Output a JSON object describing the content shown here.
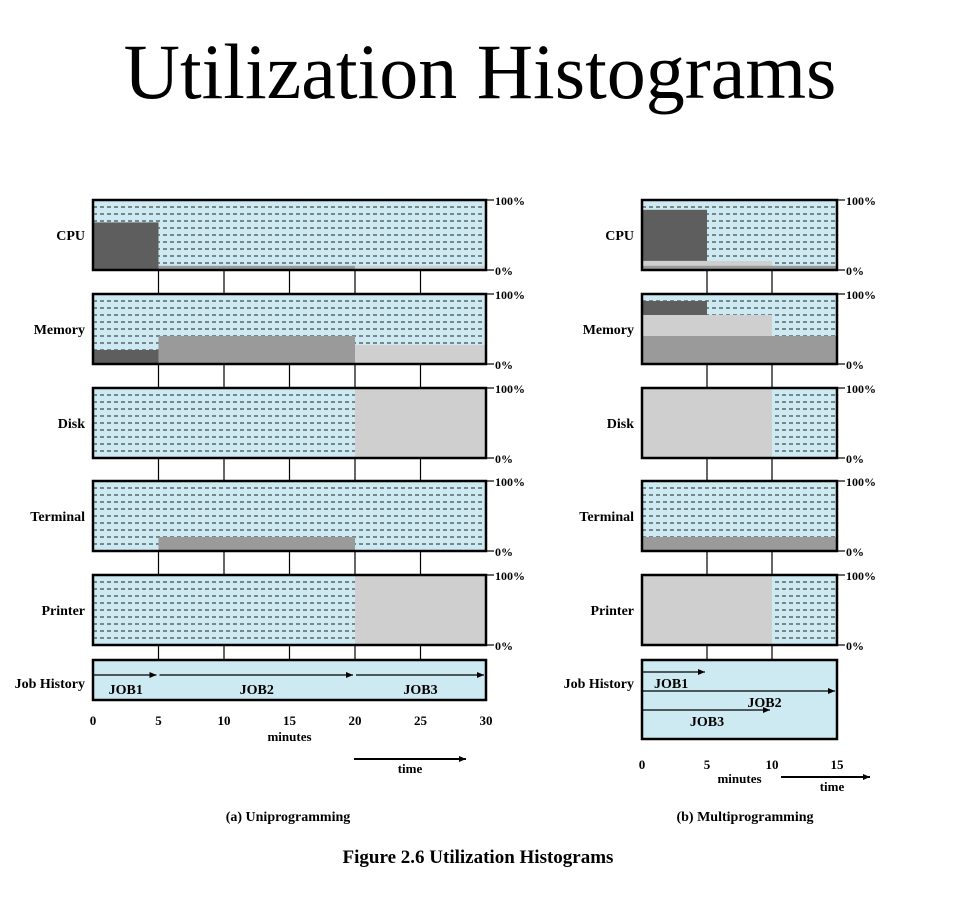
{
  "title": "Utilization Histograms",
  "figure_caption": "Figure 2.6  Utilization Histograms",
  "colors": {
    "idle_fill": "#cde9f2",
    "dash": "#222222",
    "job1": "#5e5e5e",
    "job2": "#9a9a9a",
    "job3": "#cfcfcf",
    "border": "#000000"
  },
  "resources": [
    "CPU",
    "Memory",
    "Disk",
    "Terminal",
    "Printer"
  ],
  "job_history_label": "Job History",
  "pct_top": "100%",
  "pct_bottom": "0%",
  "panels": [
    {
      "caption": "(a) Uniprogramming",
      "axis_label": "minutes",
      "time_label": "time",
      "x_max": 30,
      "ticks": [
        "0",
        "5",
        "10",
        "15",
        "20",
        "25",
        "30"
      ],
      "tick_values": [
        0,
        5,
        10,
        15,
        20,
        25,
        30
      ],
      "resource_segments": {
        "CPU": [
          {
            "job": "job1",
            "start": 0,
            "end": 5,
            "from": 0,
            "to": 0.68
          },
          {
            "job": "job2",
            "start": 5,
            "end": 20,
            "from": 0,
            "to": 0.06
          },
          {
            "job": "job3",
            "start": 20,
            "end": 30,
            "from": 0,
            "to": 0.06
          }
        ],
        "Memory": [
          {
            "job": "job1",
            "start": 0,
            "end": 5,
            "from": 0,
            "to": 0.2
          },
          {
            "job": "job2",
            "start": 5,
            "end": 20,
            "from": 0,
            "to": 0.4
          },
          {
            "job": "job3",
            "start": 20,
            "end": 30,
            "from": 0,
            "to": 0.27
          }
        ],
        "Disk": [
          {
            "job": "job3",
            "start": 20,
            "end": 30,
            "from": 0,
            "to": 1
          }
        ],
        "Terminal": [
          {
            "job": "job2",
            "start": 5,
            "end": 20,
            "from": 0,
            "to": 0.2
          }
        ],
        "Printer": [
          {
            "job": "job3",
            "start": 20,
            "end": 30,
            "from": 0,
            "to": 1
          }
        ]
      },
      "job_history": [
        {
          "label": "JOB1",
          "start": 0,
          "end": 5
        },
        {
          "label": "JOB2",
          "start": 5,
          "end": 20
        },
        {
          "label": "JOB3",
          "start": 20,
          "end": 30
        }
      ]
    },
    {
      "caption": "(b) Multiprogramming",
      "axis_label": "minutes",
      "time_label": "time",
      "x_max": 15,
      "ticks": [
        "0",
        "5",
        "10",
        "15"
      ],
      "tick_values": [
        0,
        5,
        10,
        15
      ],
      "resource_segments": {
        "CPU": [
          {
            "job": "job3",
            "start": 0,
            "end": 10,
            "from": 0,
            "to": 0.13
          },
          {
            "job": "job1",
            "start": 0,
            "end": 5,
            "from": 0.13,
            "to": 0.86
          },
          {
            "job": "job2",
            "start": 0,
            "end": 15,
            "from": 0,
            "to": 0.06
          }
        ],
        "Memory": [
          {
            "job": "job2",
            "start": 0,
            "end": 15,
            "from": 0,
            "to": 0.4
          },
          {
            "job": "job3",
            "start": 0,
            "end": 10,
            "from": 0.4,
            "to": 0.7
          },
          {
            "job": "job1",
            "start": 0,
            "end": 5,
            "from": 0.7,
            "to": 0.9
          }
        ],
        "Disk": [
          {
            "job": "job3",
            "start": 0,
            "end": 10,
            "from": 0,
            "to": 1
          }
        ],
        "Terminal": [
          {
            "job": "job2",
            "start": 0,
            "end": 15,
            "from": 0,
            "to": 0.2
          }
        ],
        "Printer": [
          {
            "job": "job3",
            "start": 0,
            "end": 10,
            "from": 0,
            "to": 1
          }
        ]
      },
      "job_history": [
        {
          "label": "JOB1",
          "start": 0,
          "end": 5
        },
        {
          "label": "JOB2",
          "start": 0,
          "end": 15
        },
        {
          "label": "JOB3",
          "start": 0,
          "end": 10
        }
      ]
    }
  ]
}
